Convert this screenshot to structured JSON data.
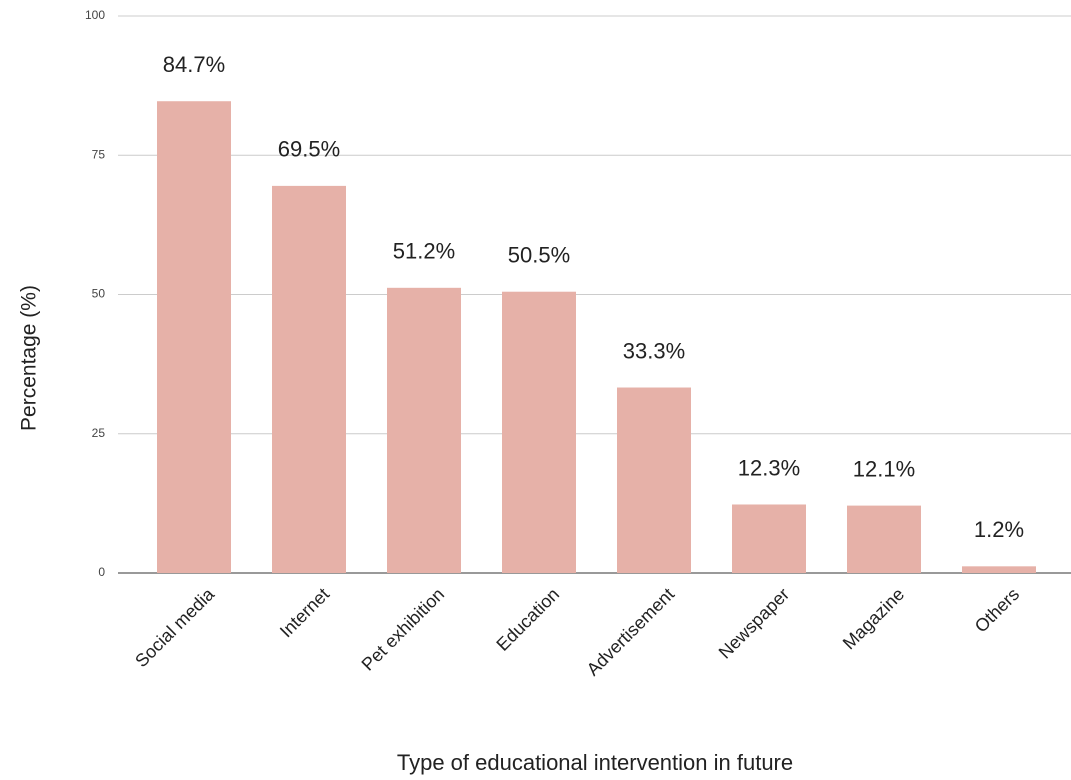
{
  "chart_data": {
    "type": "bar",
    "xlabel": "Type of educational intervention in future",
    "ylabel": "Percentage (%)",
    "categories": [
      "Social media",
      "Internet",
      "Pet exhibition",
      "Education",
      "Advertisement",
      "Newspaper",
      "Magazine",
      "Others"
    ],
    "values": [
      84.7,
      69.5,
      51.2,
      50.5,
      33.3,
      12.3,
      12.1,
      1.2
    ],
    "value_labels": [
      "84.7%",
      "69.5%",
      "51.2%",
      "50.5%",
      "33.3%",
      "12.3%",
      "12.1%",
      "1.2%"
    ],
    "color": "#e6b1a8",
    "ylim": [
      0,
      100
    ],
    "yticks": [
      0,
      25,
      50,
      75,
      100
    ],
    "grid": true
  }
}
